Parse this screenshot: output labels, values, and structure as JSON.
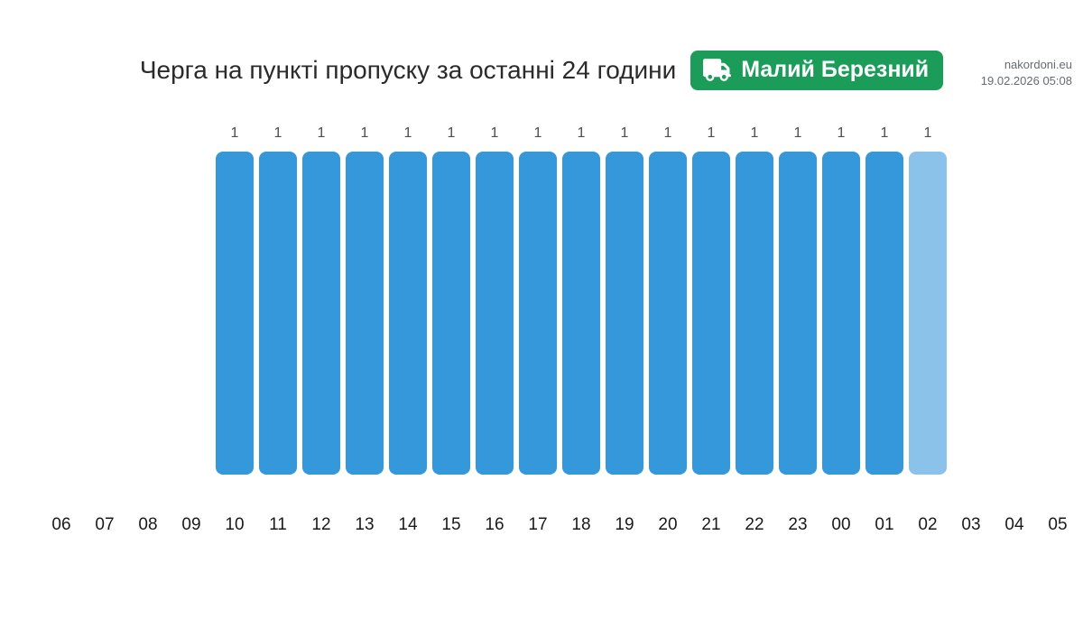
{
  "header": {
    "site": "nakordoni.eu",
    "datetime": "19.02.2026 05:08"
  },
  "badge": {
    "label": "Малий Березний",
    "icon": "truck-icon",
    "background": "#1b9c59",
    "text_color": "#ffffff"
  },
  "chart_data": {
    "type": "bar",
    "title": "Черга на пункті пропуску за останні 24 години",
    "categories": [
      "06",
      "07",
      "08",
      "09",
      "10",
      "11",
      "12",
      "13",
      "14",
      "15",
      "16",
      "17",
      "18",
      "19",
      "20",
      "21",
      "22",
      "23",
      "00",
      "01",
      "02",
      "03",
      "04",
      "05"
    ],
    "values": [
      null,
      null,
      null,
      null,
      1,
      1,
      1,
      1,
      1,
      1,
      1,
      1,
      1,
      1,
      1,
      1,
      1,
      1,
      1,
      1,
      1,
      null,
      null,
      null
    ],
    "xlabel": "",
    "ylabel": "",
    "ylim": [
      0,
      1
    ],
    "grid": false,
    "legend": "none",
    "bar_value_labels": true,
    "current_hour_index": 20,
    "colors": {
      "bar_default": "#3498db",
      "bar_current": "#8bc2ea",
      "value_label": "#4d4d4d",
      "axis_label": "#1a1a1a"
    }
  }
}
